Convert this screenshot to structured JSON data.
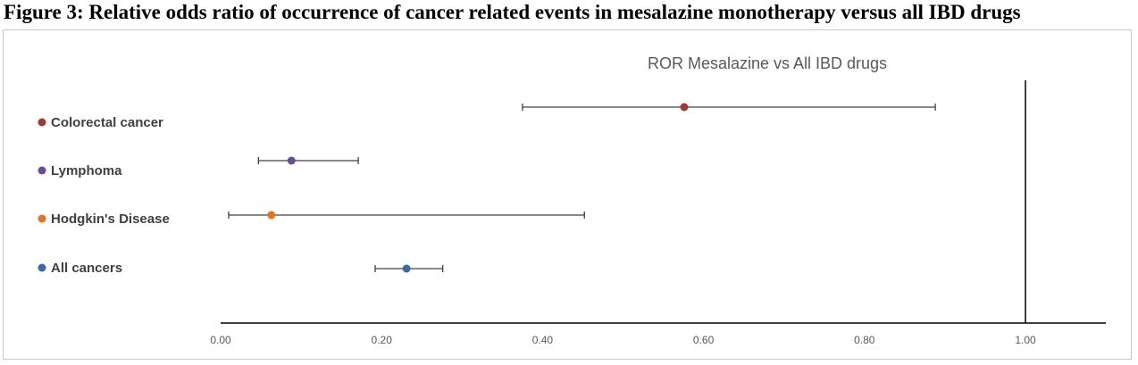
{
  "figure_title": "Figure 3: Relative odds ratio of occurrence of cancer related events in mesalazine monotherapy versus all IBD drugs",
  "chart_data": {
    "type": "scatter",
    "title": "ROR Mesalazine vs All IBD drugs",
    "xlabel": "",
    "ylabel": "",
    "xlim": [
      0,
      1.1
    ],
    "x_ticks": [
      "0.00",
      "0.20",
      "0.40",
      "0.60",
      "0.80",
      "1.00"
    ],
    "reference_line": 1.0,
    "grid": false,
    "legend_position": "left",
    "series": [
      {
        "name": "Colorectal cancer",
        "value": 0.576,
        "ci_low": 0.375,
        "ci_high": 0.888,
        "color": "#9e3a34"
      },
      {
        "name": "Lymphoma",
        "value": 0.088,
        "ci_low": 0.047,
        "ci_high": 0.171,
        "color": "#6a4c93"
      },
      {
        "name": "Hodgkin's Disease",
        "value": 0.063,
        "ci_low": 0.01,
        "ci_high": 0.452,
        "color": "#e8731c"
      },
      {
        "name": "All cancers",
        "value": 0.231,
        "ci_low": 0.192,
        "ci_high": 0.276,
        "color": "#3a6aa8"
      }
    ]
  }
}
